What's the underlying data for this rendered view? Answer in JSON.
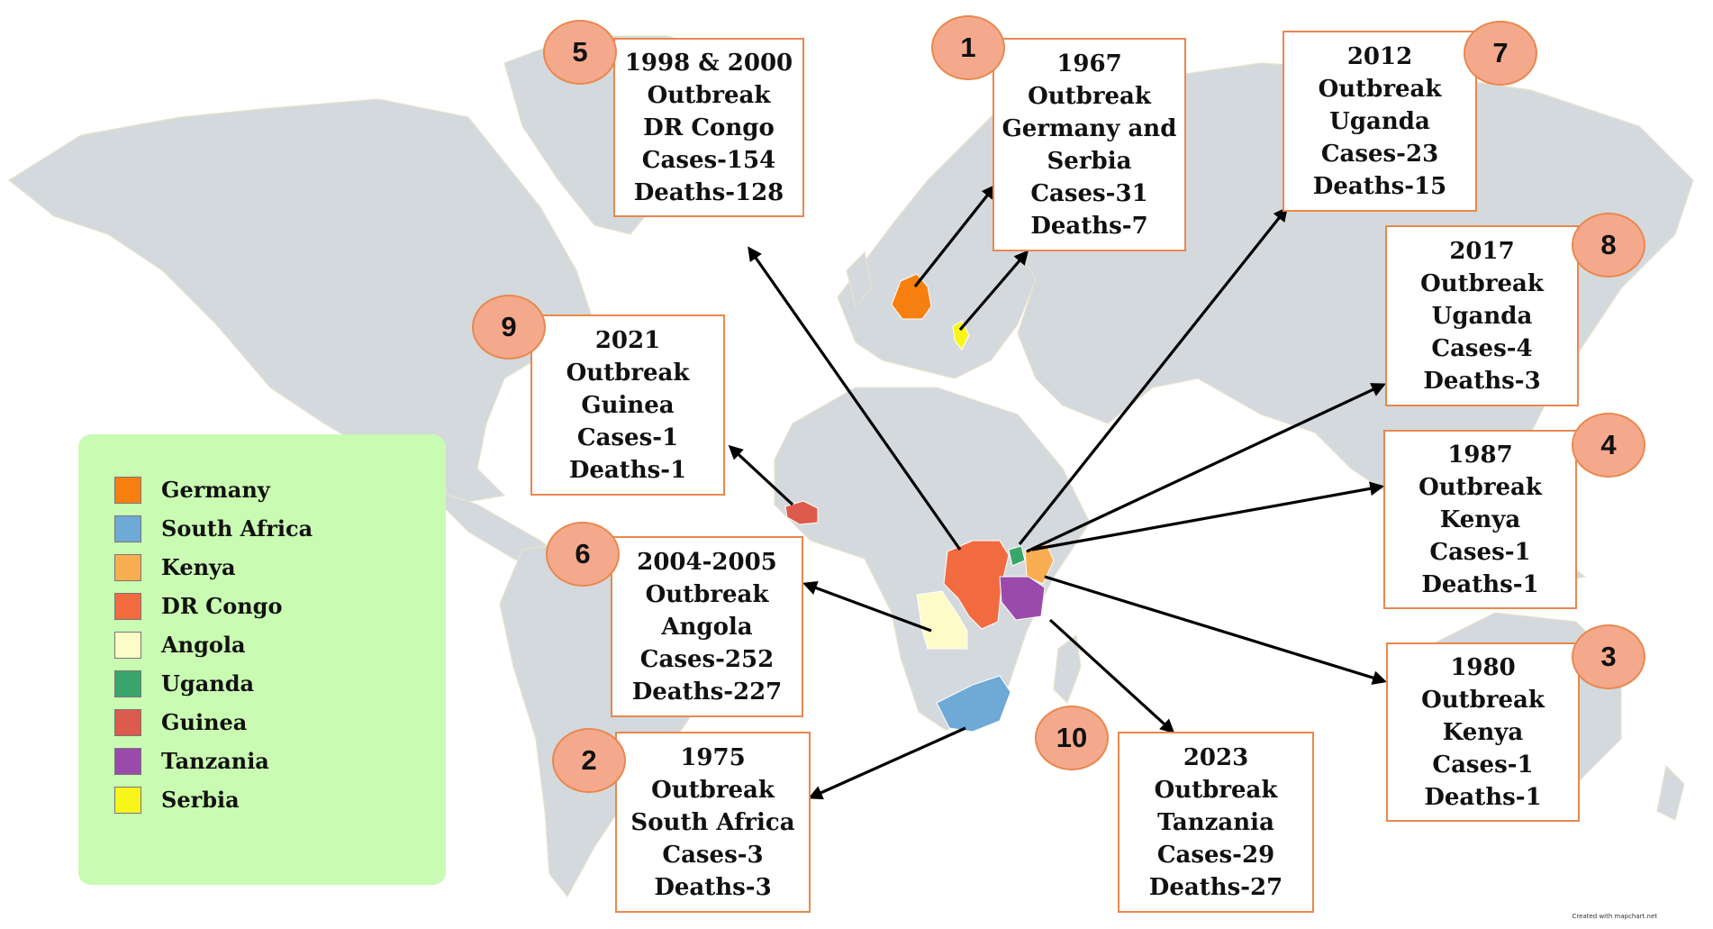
{
  "outbreaks": [
    {
      "number": "1",
      "year": "1967",
      "heading": "Outbreak",
      "location": [
        "Germany and",
        "Serbia"
      ],
      "cases": "Cases-31",
      "deaths": "Deaths-7"
    },
    {
      "number": "2",
      "year": "1975",
      "heading": "Outbreak",
      "location": [
        "South Africa"
      ],
      "cases": "Cases-3",
      "deaths": "Deaths-3"
    },
    {
      "number": "3",
      "year": "1980",
      "heading": "Outbreak",
      "location": [
        "Kenya"
      ],
      "cases": "Cases-1",
      "deaths": "Deaths-1"
    },
    {
      "number": "4",
      "year": "1987",
      "heading": "Outbreak",
      "location": [
        "Kenya"
      ],
      "cases": "Cases-1",
      "deaths": "Deaths-1"
    },
    {
      "number": "5",
      "year": "1998 & 2000",
      "heading": "Outbreak",
      "location": [
        "DR Congo"
      ],
      "cases": "Cases-154",
      "deaths": "Deaths-128"
    },
    {
      "number": "6",
      "year": "2004-2005",
      "heading": "Outbreak",
      "location": [
        "Angola"
      ],
      "cases": "Cases-252",
      "deaths": "Deaths-227"
    },
    {
      "number": "7",
      "year": "2012",
      "heading": "Outbreak",
      "location": [
        "Uganda"
      ],
      "cases": "Cases-23",
      "deaths": "Deaths-15"
    },
    {
      "number": "8",
      "year": "2017",
      "heading": "Outbreak",
      "location": [
        "Uganda"
      ],
      "cases": "Cases-4",
      "deaths": "Deaths-3"
    },
    {
      "number": "9",
      "year": "2021",
      "heading": "Outbreak",
      "location": [
        "Guinea"
      ],
      "cases": "Cases-1",
      "deaths": "Deaths-1"
    },
    {
      "number": "10",
      "year": "2023",
      "heading": "Outbreak",
      "location": [
        "Tanzania"
      ],
      "cases": "Cases-29",
      "deaths": "Deaths-27"
    }
  ],
  "legend": [
    {
      "label": "Germany",
      "color": "#f77f0f"
    },
    {
      "label": "South Africa",
      "color": "#6fa9d6"
    },
    {
      "label": "Kenya",
      "color": "#f8ae50"
    },
    {
      "label": "DR Congo",
      "color": "#f26b40"
    },
    {
      "label": "Angola",
      "color": "#fdfbc8"
    },
    {
      "label": "Uganda",
      "color": "#3aa56a"
    },
    {
      "label": "Guinea",
      "color": "#dd5b4c"
    },
    {
      "label": "Tanzania",
      "color": "#9a4aab"
    },
    {
      "label": "Serbia",
      "color": "#f8f51b"
    }
  ],
  "credit": "Created with mapchart.net",
  "colors": {
    "land": "#d3d9dc",
    "box_border": "#e8884f",
    "badge_fill": "#f5a98c",
    "legend_bg": "#c9fbb2"
  }
}
